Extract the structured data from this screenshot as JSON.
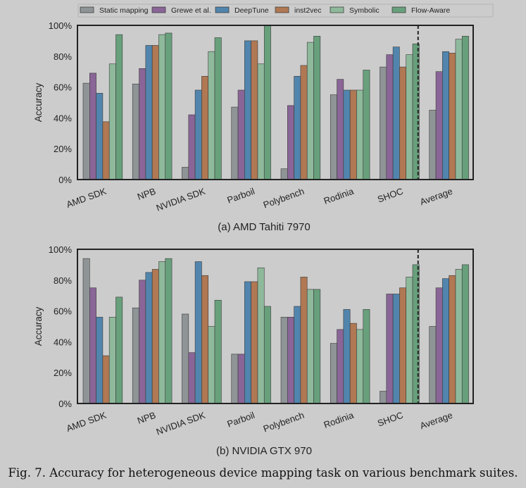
{
  "legend": [
    "Static mapping",
    "Grewe et al.",
    "DeepTune",
    "inst2vec",
    "Symbolic",
    "Flow-Aware"
  ],
  "colors": [
    "#8f9496",
    "#8a6597",
    "#5185ad",
    "#b07853",
    "#8eb99b",
    "#68a07c"
  ],
  "figure_caption": "Fig. 7.  Accuracy for heterogeneous device mapping task on various benchmark suites.",
  "chart_data": [
    {
      "type": "bar",
      "title": "(a) AMD Tahiti 7970",
      "ylabel": "Accuracy",
      "ylim": [
        0,
        100
      ],
      "yticks": [
        "0%",
        "20%",
        "40%",
        "60%",
        "80%",
        "100%"
      ],
      "categories": [
        "AMD SDK",
        "NPB",
        "NVIDIA SDK",
        "Parboil",
        "Polybench",
        "Rodinia",
        "SHOC",
        "Average"
      ],
      "series": [
        {
          "name": "Static mapping",
          "values": [
            62.5,
            62,
            8,
            47,
            7,
            55,
            73,
            45
          ]
        },
        {
          "name": "Grewe et al.",
          "values": [
            69,
            72,
            42,
            58,
            48,
            65,
            81,
            70
          ]
        },
        {
          "name": "DeepTune",
          "values": [
            56,
            87,
            58,
            90,
            67,
            58,
            86,
            83
          ]
        },
        {
          "name": "inst2vec",
          "values": [
            37.5,
            87,
            67,
            90,
            74,
            58,
            73,
            82
          ]
        },
        {
          "name": "Symbolic",
          "values": [
            75,
            94,
            83,
            75,
            89,
            58,
            81,
            91
          ]
        },
        {
          "name": "Flow-Aware",
          "values": [
            94,
            95,
            92,
            100,
            93,
            71,
            88,
            93
          ]
        }
      ]
    },
    {
      "type": "bar",
      "title": "(b) NVIDIA GTX 970",
      "ylabel": "Accuracy",
      "ylim": [
        0,
        100
      ],
      "yticks": [
        "0%",
        "20%",
        "40%",
        "60%",
        "80%",
        "100%"
      ],
      "categories": [
        "AMD SDK",
        "NPB",
        "NVIDIA SDK",
        "Parboil",
        "Polybench",
        "Rodinia",
        "SHOC",
        "Average"
      ],
      "series": [
        {
          "name": "Static mapping",
          "values": [
            94,
            62,
            58,
            32,
            56,
            39,
            8,
            50
          ]
        },
        {
          "name": "Grewe et al.",
          "values": [
            75,
            80,
            33,
            32,
            56,
            48,
            71,
            75
          ]
        },
        {
          "name": "DeepTune",
          "values": [
            56,
            85,
            92,
            79,
            63,
            61,
            71,
            81
          ]
        },
        {
          "name": "inst2vec",
          "values": [
            31,
            87,
            83,
            79,
            82,
            52,
            75,
            83
          ]
        },
        {
          "name": "Symbolic",
          "values": [
            56,
            92,
            50,
            88,
            74,
            48,
            82,
            87
          ]
        },
        {
          "name": "Flow-Aware",
          "values": [
            69,
            94,
            67,
            63,
            74,
            61,
            90,
            90
          ]
        }
      ]
    }
  ]
}
